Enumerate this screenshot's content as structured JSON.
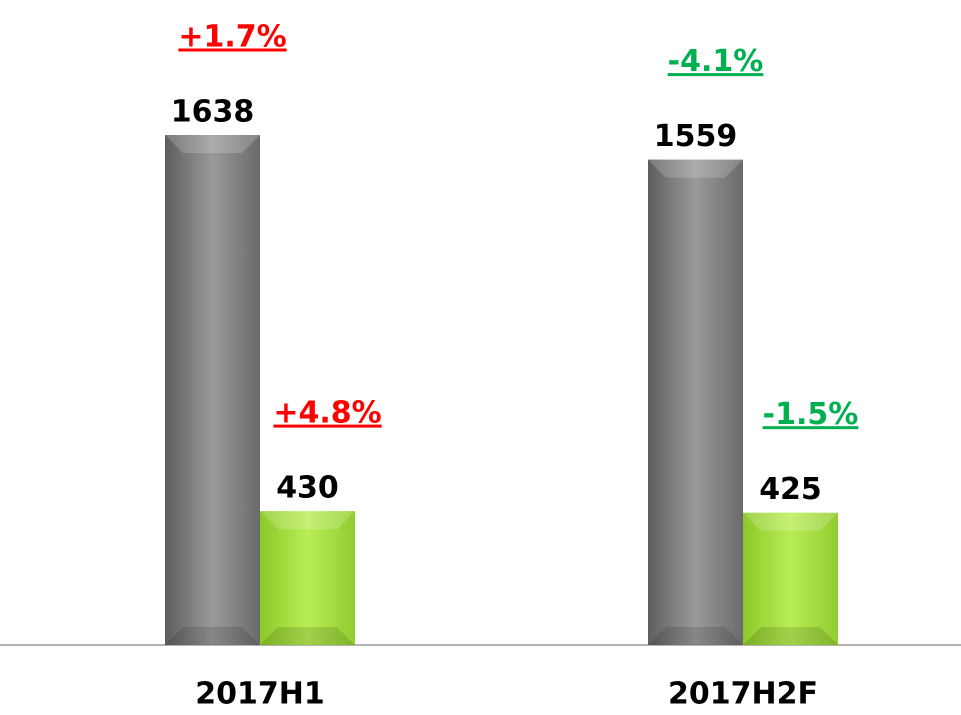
{
  "chart_data": {
    "type": "bar",
    "categories": [
      "2017H1",
      "2017H2F"
    ],
    "series": [
      {
        "color": "#808080",
        "values": [
          1638,
          1559
        ],
        "annotations": [
          "+1.7%",
          "-4.1%"
        ],
        "annotation_colors": [
          "#ff0000",
          "#00b050"
        ]
      },
      {
        "color": "#a8e040",
        "values": [
          430,
          425
        ],
        "annotations": [
          "+4.8%",
          "-1.5%"
        ],
        "annotation_colors": [
          "#ff0000",
          "#00b050"
        ]
      }
    ],
    "ylim": [
      0,
      2070
    ]
  }
}
